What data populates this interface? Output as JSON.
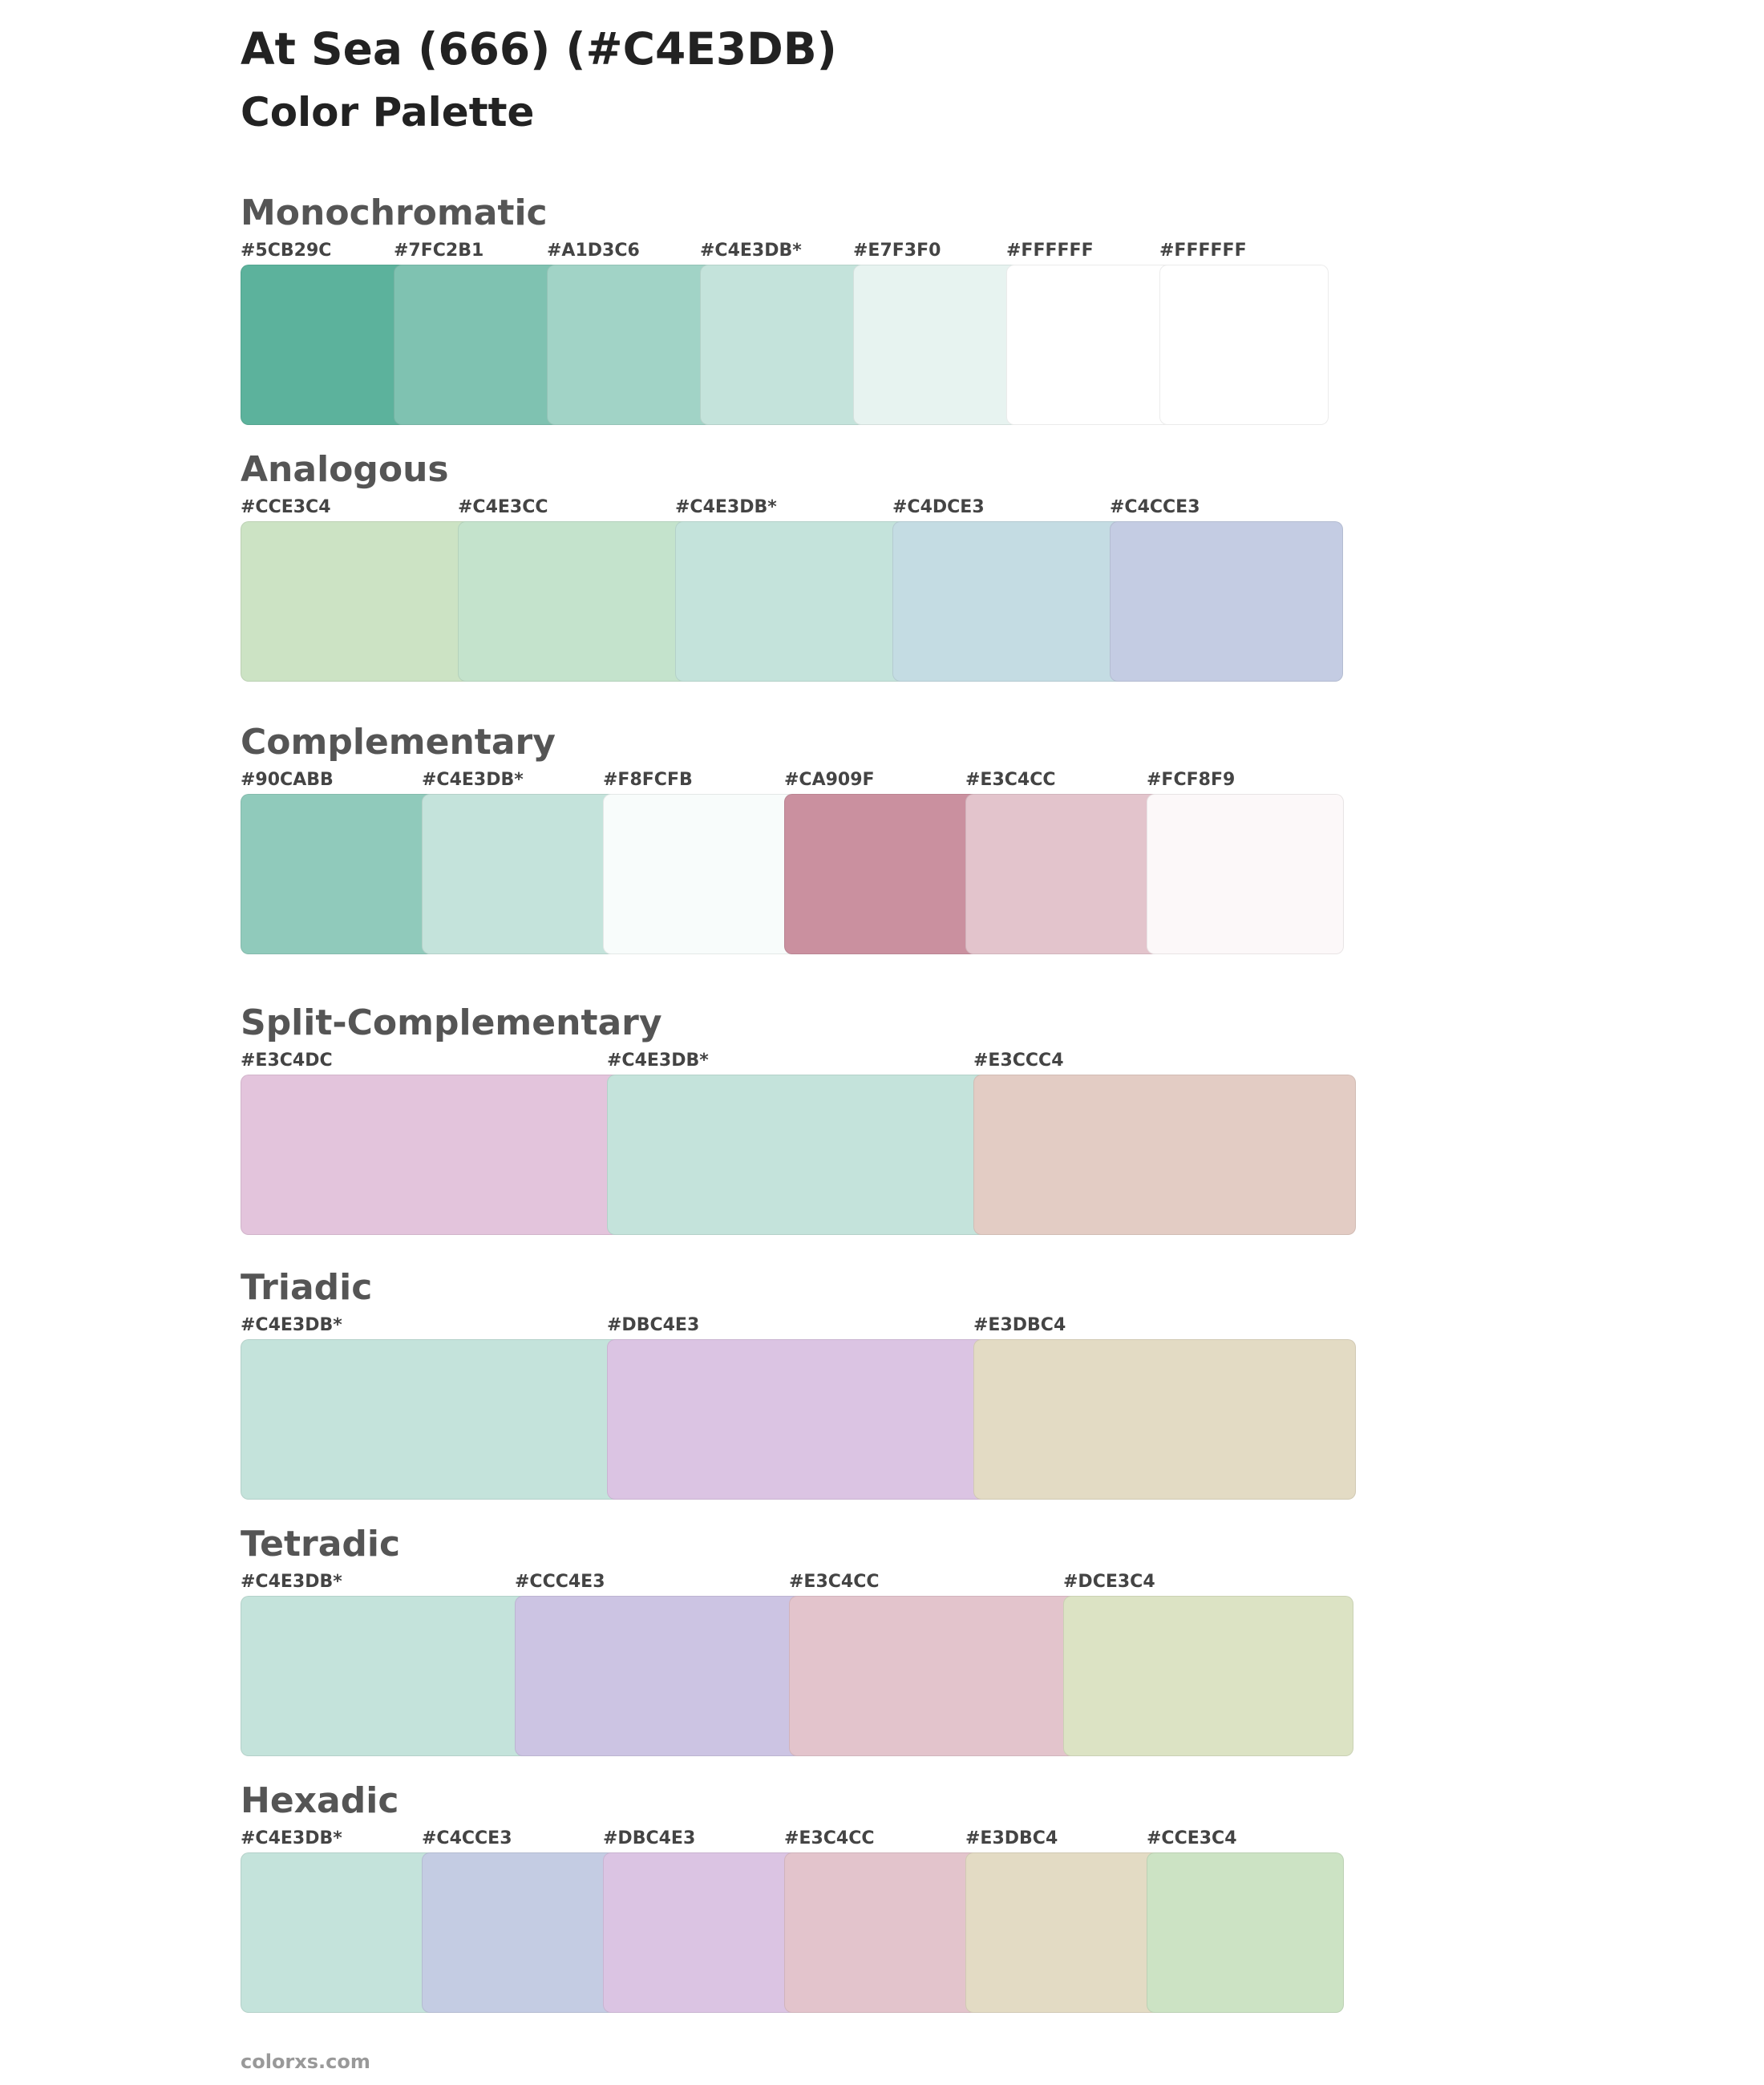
{
  "header": {
    "title": "At Sea (666) (#C4E3DB)",
    "subtitle": "Color Palette"
  },
  "sections": [
    {
      "title": "Monochromatic",
      "colors": [
        "#5CB29C",
        "#7FC2B1",
        "#A1D3C6",
        "#C4E3DB*",
        "#E7F3F0",
        "#FFFFFF",
        "#FFFFFF"
      ],
      "swatches": [
        "#5CB29C",
        "#7FC2B1",
        "#A1D3C6",
        "#C4E3DB",
        "#E7F3F0",
        "#FFFFFF",
        "#FFFFFF"
      ]
    },
    {
      "title": "Analogous",
      "colors": [
        "#CCE3C4",
        "#C4E3CC",
        "#C4E3DB*",
        "#C4DCE3",
        "#C4CCE3"
      ],
      "swatches": [
        "#CCE3C4",
        "#C4E3CC",
        "#C4E3DB",
        "#C4DCE3",
        "#C4CCE3"
      ]
    },
    {
      "title": "Complementary",
      "colors": [
        "#90CABB",
        "#C4E3DB*",
        "#F8FCFB",
        "#CA909F",
        "#E3C4CC",
        "#FCF8F9"
      ],
      "swatches": [
        "#90CABB",
        "#C4E3DB",
        "#F8FCFB",
        "#CA909F",
        "#E3C4CC",
        "#FCF8F9"
      ]
    },
    {
      "title": "Split-Complementary",
      "colors": [
        "#E3C4DC",
        "#C4E3DB*",
        "#E3CCC4"
      ],
      "swatches": [
        "#E3C4DC",
        "#C4E3DB",
        "#E3CCC4"
      ]
    },
    {
      "title": "Triadic",
      "colors": [
        "#C4E3DB*",
        "#DBC4E3",
        "#E3DBC4"
      ],
      "swatches": [
        "#C4E3DB",
        "#DBC4E3",
        "#E3DBC4"
      ]
    },
    {
      "title": "Tetradic",
      "colors": [
        "#C4E3DB*",
        "#CCC4E3",
        "#E3C4CC",
        "#DCE3C4"
      ],
      "swatches": [
        "#C4E3DB",
        "#CCC4E3",
        "#E3C4CC",
        "#DCE3C4"
      ]
    },
    {
      "title": "Hexadic",
      "colors": [
        "#C4E3DB*",
        "#C4CCE3",
        "#DBC4E3",
        "#E3C4CC",
        "#E3DBC4",
        "#CCE3C4"
      ],
      "swatches": [
        "#C4E3DB",
        "#C4CCE3",
        "#DBC4E3",
        "#E3C4CC",
        "#E3DBC4",
        "#CCE3C4"
      ]
    }
  ],
  "footer": {
    "text": "colorxs.com"
  }
}
